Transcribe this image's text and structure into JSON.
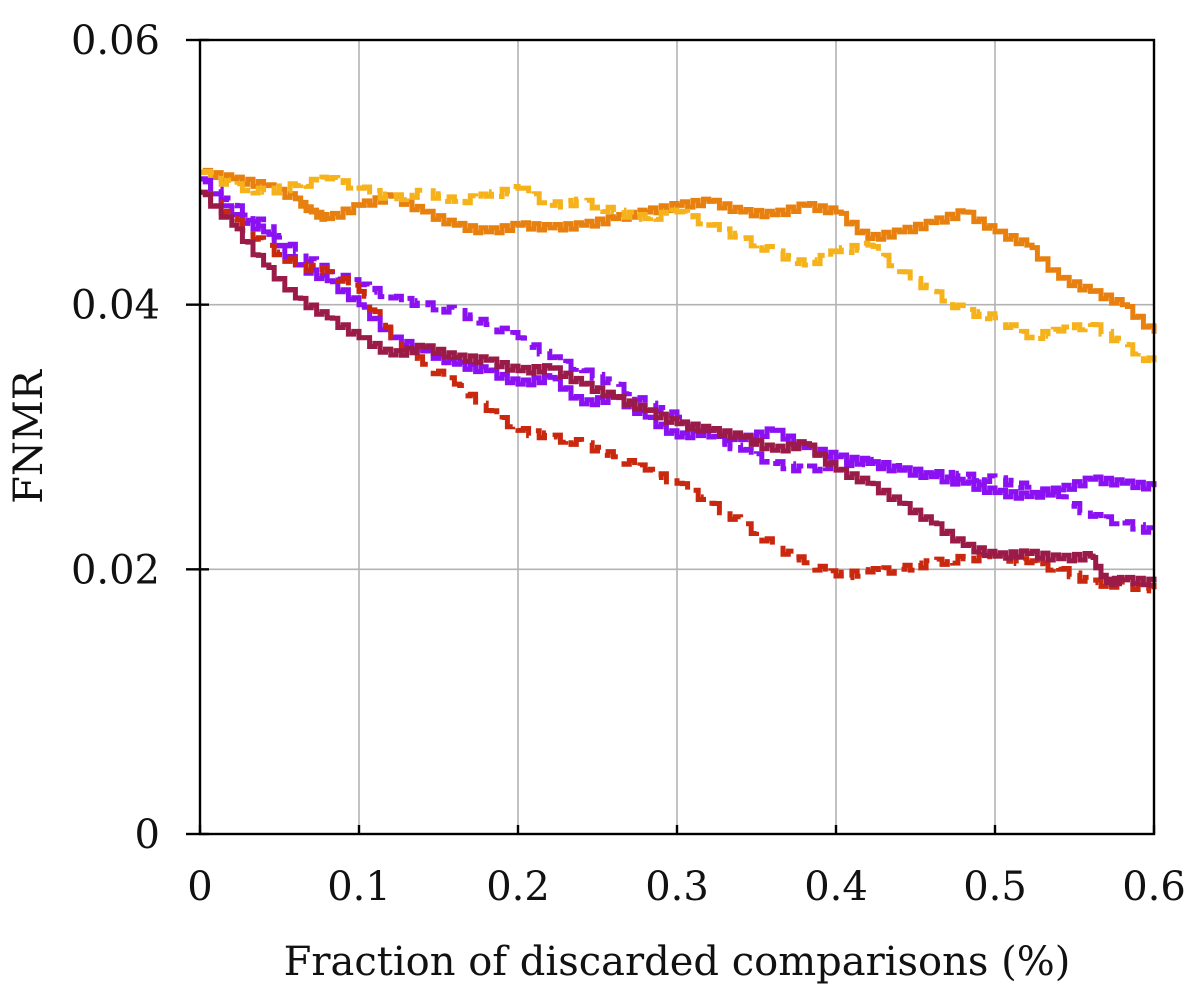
{
  "chart_data": {
    "type": "line",
    "title": "",
    "xlabel": "Fraction of discarded comparisons (%)",
    "ylabel": "FNMR",
    "xlim": [
      0,
      0.6
    ],
    "ylim": [
      0,
      0.06
    ],
    "grid": true,
    "x_ticks": [
      0,
      0.1,
      0.2,
      0.3,
      0.4,
      0.5,
      0.6
    ],
    "x_tick_labels": [
      "0",
      "0.1",
      "0.2",
      "0.3",
      "0.4",
      "0.5",
      "0.6"
    ],
    "y_ticks": [
      0,
      0.02,
      0.04,
      0.06
    ],
    "y_tick_labels": [
      "0",
      "0.02",
      "0.04",
      "0.06"
    ],
    "series": [
      {
        "name": "orange-solid",
        "color": "#e8800f",
        "dash": "solid",
        "x": [
          0,
          0.02,
          0.04,
          0.06,
          0.07,
          0.08,
          0.1,
          0.12,
          0.14,
          0.16,
          0.18,
          0.2,
          0.22,
          0.24,
          0.26,
          0.28,
          0.3,
          0.32,
          0.34,
          0.36,
          0.38,
          0.4,
          0.42,
          0.44,
          0.46,
          0.48,
          0.5,
          0.52,
          0.54,
          0.56,
          0.58,
          0.6
        ],
        "values": [
          0.05,
          0.0495,
          0.049,
          0.048,
          0.047,
          0.0465,
          0.0475,
          0.0482,
          0.047,
          0.046,
          0.0455,
          0.046,
          0.0458,
          0.046,
          0.0465,
          0.047,
          0.0475,
          0.0478,
          0.047,
          0.0468,
          0.0475,
          0.047,
          0.045,
          0.0455,
          0.0462,
          0.047,
          0.0455,
          0.0445,
          0.042,
          0.041,
          0.04,
          0.0378
        ]
      },
      {
        "name": "yellow-dashed",
        "color": "#f5b21a",
        "dash": "dashed",
        "x": [
          0,
          0.02,
          0.04,
          0.06,
          0.08,
          0.1,
          0.12,
          0.14,
          0.16,
          0.18,
          0.2,
          0.22,
          0.24,
          0.26,
          0.28,
          0.3,
          0.32,
          0.34,
          0.36,
          0.38,
          0.4,
          0.42,
          0.44,
          0.46,
          0.48,
          0.5,
          0.52,
          0.54,
          0.56,
          0.58,
          0.6
        ],
        "values": [
          0.05,
          0.049,
          0.0485,
          0.049,
          0.0495,
          0.0488,
          0.048,
          0.0485,
          0.0478,
          0.0482,
          0.0488,
          0.0475,
          0.0478,
          0.047,
          0.0465,
          0.047,
          0.046,
          0.045,
          0.044,
          0.043,
          0.044,
          0.0445,
          0.0425,
          0.041,
          0.0395,
          0.039,
          0.0375,
          0.038,
          0.0385,
          0.037,
          0.0355
        ]
      },
      {
        "name": "purple-solid",
        "color": "#8b10f2",
        "dash": "solid",
        "x": [
          0,
          0.02,
          0.04,
          0.06,
          0.08,
          0.1,
          0.12,
          0.14,
          0.16,
          0.18,
          0.2,
          0.22,
          0.24,
          0.26,
          0.28,
          0.3,
          0.32,
          0.34,
          0.36,
          0.38,
          0.4,
          0.42,
          0.44,
          0.46,
          0.48,
          0.5,
          0.52,
          0.54,
          0.56,
          0.58,
          0.6
        ],
        "values": [
          0.0495,
          0.0468,
          0.0455,
          0.043,
          0.0418,
          0.04,
          0.0375,
          0.0365,
          0.0355,
          0.035,
          0.034,
          0.0345,
          0.0325,
          0.033,
          0.0315,
          0.03,
          0.0305,
          0.0298,
          0.0305,
          0.0292,
          0.0285,
          0.028,
          0.0275,
          0.027,
          0.0265,
          0.0258,
          0.0255,
          0.026,
          0.0268,
          0.0265,
          0.0262
        ]
      },
      {
        "name": "purple-dashed",
        "color": "#8b10f2",
        "dash": "dashed",
        "x": [
          0,
          0.02,
          0.04,
          0.06,
          0.08,
          0.1,
          0.12,
          0.14,
          0.16,
          0.18,
          0.2,
          0.22,
          0.24,
          0.26,
          0.28,
          0.3,
          0.32,
          0.34,
          0.36,
          0.38,
          0.4,
          0.42,
          0.44,
          0.46,
          0.48,
          0.5,
          0.52,
          0.54,
          0.56,
          0.58,
          0.6
        ],
        "values": [
          0.0495,
          0.0475,
          0.046,
          0.044,
          0.0425,
          0.0415,
          0.0405,
          0.04,
          0.0395,
          0.0385,
          0.0375,
          0.036,
          0.035,
          0.034,
          0.0325,
          0.0315,
          0.03,
          0.029,
          0.028,
          0.0275,
          0.028,
          0.0282,
          0.0275,
          0.0272,
          0.027,
          0.0268,
          0.0262,
          0.0255,
          0.024,
          0.0235,
          0.0228
        ]
      },
      {
        "name": "red-dashed",
        "color": "#c9280f",
        "dash": "dashed",
        "x": [
          0,
          0.02,
          0.04,
          0.06,
          0.08,
          0.1,
          0.12,
          0.14,
          0.16,
          0.18,
          0.2,
          0.22,
          0.24,
          0.26,
          0.28,
          0.3,
          0.32,
          0.34,
          0.36,
          0.38,
          0.4,
          0.42,
          0.44,
          0.46,
          0.48,
          0.5,
          0.52,
          0.54,
          0.56,
          0.58,
          0.6
        ],
        "values": [
          0.0485,
          0.0465,
          0.0445,
          0.043,
          0.0425,
          0.041,
          0.0375,
          0.0355,
          0.034,
          0.032,
          0.0305,
          0.03,
          0.0295,
          0.0285,
          0.0275,
          0.0265,
          0.025,
          0.0235,
          0.0218,
          0.0205,
          0.0195,
          0.0198,
          0.02,
          0.0205,
          0.0208,
          0.021,
          0.0205,
          0.02,
          0.019,
          0.0188,
          0.0185
        ]
      },
      {
        "name": "maroon-solid",
        "color": "#9a1a48",
        "dash": "solid",
        "x": [
          0,
          0.02,
          0.04,
          0.06,
          0.08,
          0.1,
          0.12,
          0.14,
          0.16,
          0.18,
          0.2,
          0.22,
          0.24,
          0.26,
          0.28,
          0.3,
          0.32,
          0.34,
          0.36,
          0.38,
          0.4,
          0.42,
          0.44,
          0.46,
          0.48,
          0.5,
          0.52,
          0.54,
          0.56,
          0.57,
          0.58,
          0.6
        ],
        "values": [
          0.0485,
          0.046,
          0.043,
          0.0405,
          0.039,
          0.0375,
          0.0362,
          0.0368,
          0.036,
          0.0358,
          0.035,
          0.0352,
          0.034,
          0.033,
          0.032,
          0.031,
          0.0305,
          0.03,
          0.029,
          0.0295,
          0.0275,
          0.0265,
          0.025,
          0.0235,
          0.0218,
          0.021,
          0.0212,
          0.0208,
          0.021,
          0.019,
          0.0192,
          0.019
        ]
      }
    ]
  }
}
